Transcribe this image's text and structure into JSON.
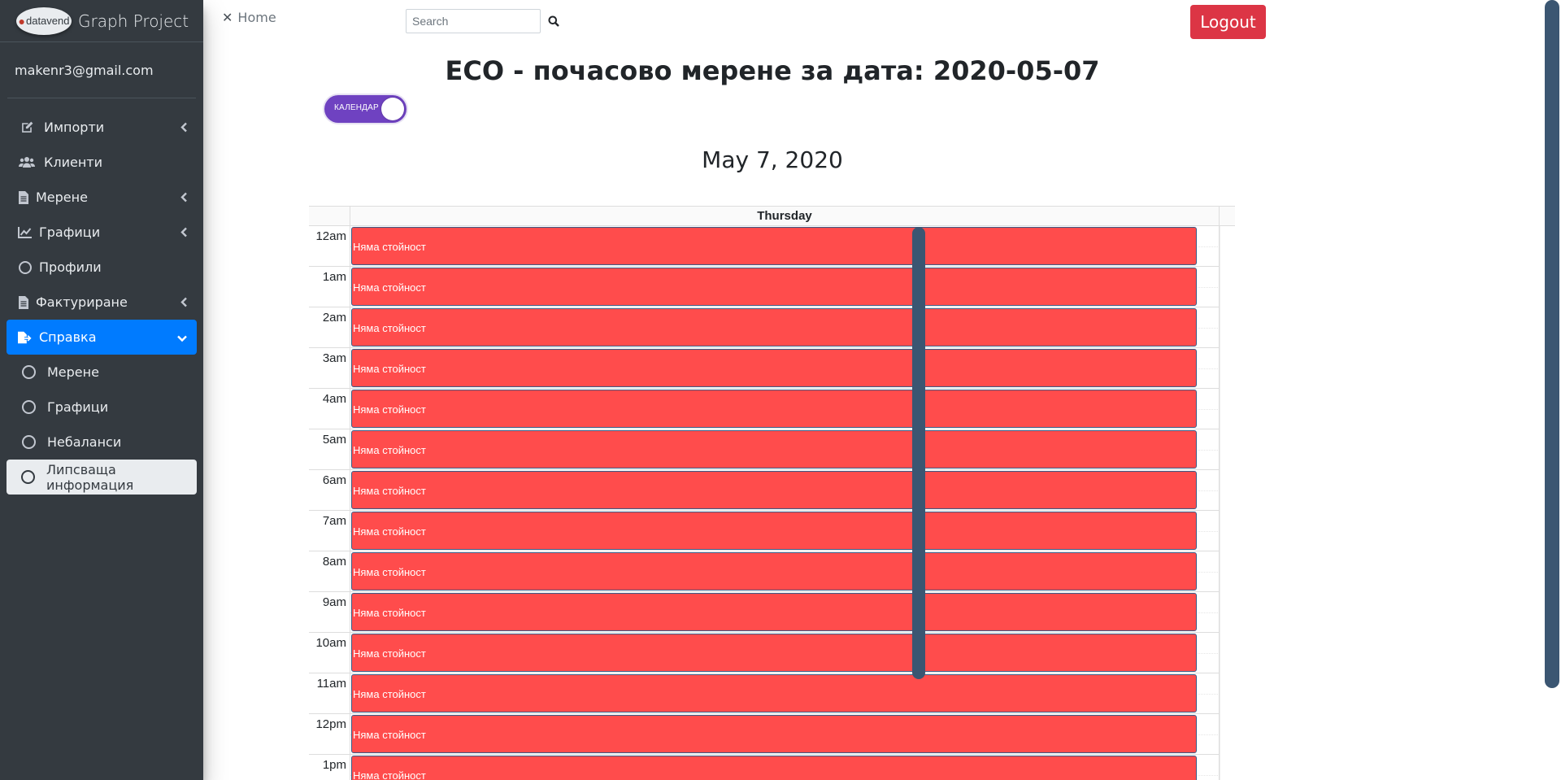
{
  "brand": {
    "logo_text": "datavend",
    "title": "Graph Project"
  },
  "user": {
    "email": "makenr3@gmail.com"
  },
  "sidebar": {
    "items": [
      {
        "label": "Импорти"
      },
      {
        "label": "Клиенти"
      },
      {
        "label": "Мерене"
      },
      {
        "label": "Графици"
      },
      {
        "label": "Профили"
      },
      {
        "label": "Фактуриране"
      },
      {
        "label": "Справка"
      },
      {
        "label": "Мерене"
      },
      {
        "label": "Графици"
      },
      {
        "label": "Небаланси"
      },
      {
        "label": "Липсваща информация"
      }
    ]
  },
  "topbar": {
    "home": "Home",
    "search_placeholder": "Search",
    "logout": "Logout"
  },
  "page": {
    "title": "ECO - почасово мерене за дата: 2020-05-07",
    "toggle_label": "КАЛЕНДАР",
    "date_heading": "May 7, 2020"
  },
  "calendar": {
    "day_header": "Thursday",
    "event_color": "#ff4c4c",
    "slots": [
      {
        "time": "12am",
        "event": "Няма стойност"
      },
      {
        "time": "1am",
        "event": "Няма стойност"
      },
      {
        "time": "2am",
        "event": "Няма стойност"
      },
      {
        "time": "3am",
        "event": "Няма стойност"
      },
      {
        "time": "4am",
        "event": "Няма стойност"
      },
      {
        "time": "5am",
        "event": "Няма стойност"
      },
      {
        "time": "6am",
        "event": "Няма стойност"
      },
      {
        "time": "7am",
        "event": "Няма стойност"
      },
      {
        "time": "8am",
        "event": "Няма стойност"
      },
      {
        "time": "9am",
        "event": "Няма стойност"
      },
      {
        "time": "10am",
        "event": "Няма стойност"
      },
      {
        "time": "11am",
        "event": "Няма стойност"
      },
      {
        "time": "12pm",
        "event": "Няма стойност"
      },
      {
        "time": "1pm",
        "event": "Няма стойност"
      }
    ]
  },
  "colors": {
    "sidebar_bg": "#343a40",
    "active": "#007bff",
    "logout": "#dc3545",
    "toggle": "#6f42c1"
  }
}
